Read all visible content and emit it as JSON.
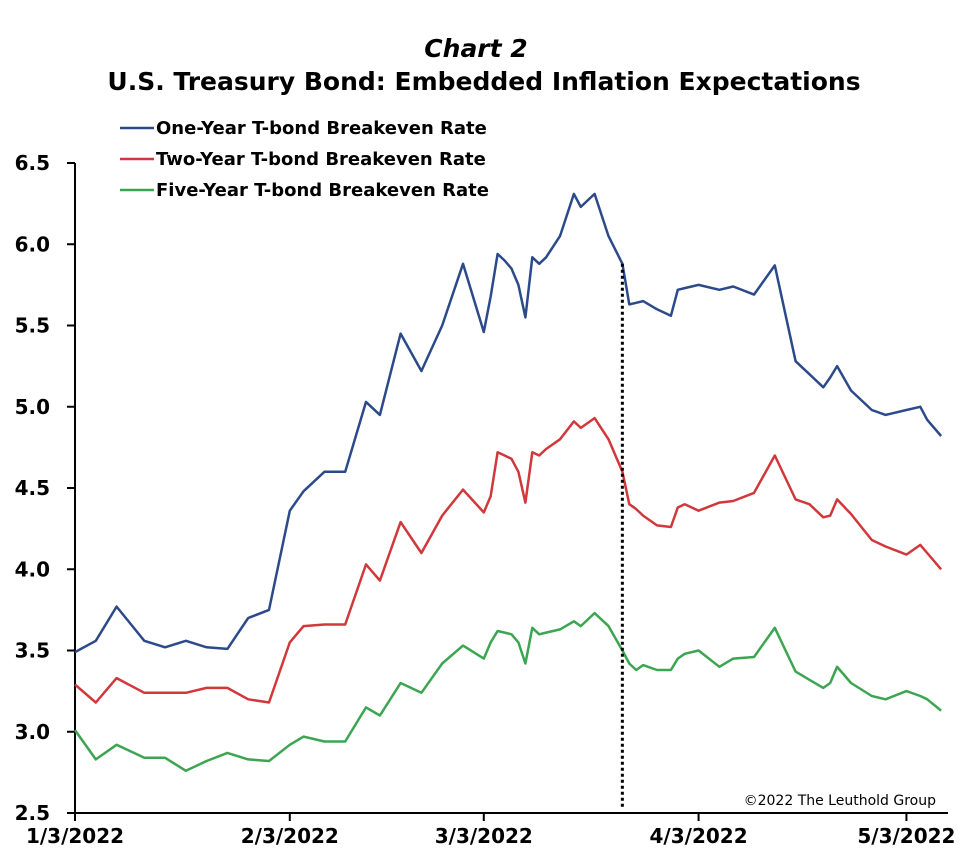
{
  "chart_data": {
    "type": "line",
    "title": "Chart 2",
    "subtitle": "U.S. Treasury Bond: Embedded Inflation Expectations",
    "credit": "©2022 The Leuthold Group",
    "xlabel": "",
    "ylabel": "",
    "ylim": [
      2.5,
      6.5
    ],
    "xlim": [
      "2022-01-03",
      "2022-05-09"
    ],
    "y_ticks": [
      "2.5",
      "3.0",
      "3.5",
      "4.0",
      "4.5",
      "5.0",
      "5.5",
      "6.0",
      "6.5"
    ],
    "x_ticks": [
      {
        "label": "1/3/2022",
        "date": "2022-01-03"
      },
      {
        "label": "2/3/2022",
        "date": "2022-02-03"
      },
      {
        "label": "3/3/2022",
        "date": "2022-03-03"
      },
      {
        "label": "4/3/2022",
        "date": "2022-04-03"
      },
      {
        "label": "5/3/2022",
        "date": "2022-05-03"
      }
    ],
    "legend_position": "top-left",
    "grid": false,
    "vertical_marker": {
      "date": "2022-03-23",
      "style": "dotted"
    },
    "x": [
      "2022-01-03",
      "2022-01-06",
      "2022-01-09",
      "2022-01-13",
      "2022-01-16",
      "2022-01-19",
      "2022-01-22",
      "2022-01-25",
      "2022-01-28",
      "2022-01-31",
      "2022-02-03",
      "2022-02-05",
      "2022-02-08",
      "2022-02-11",
      "2022-02-14",
      "2022-02-16",
      "2022-02-19",
      "2022-02-22",
      "2022-02-25",
      "2022-02-28",
      "2022-03-03",
      "2022-03-04",
      "2022-03-05",
      "2022-03-06",
      "2022-03-07",
      "2022-03-08",
      "2022-03-09",
      "2022-03-10",
      "2022-03-11",
      "2022-03-12",
      "2022-03-14",
      "2022-03-16",
      "2022-03-17",
      "2022-03-19",
      "2022-03-21",
      "2022-03-23",
      "2022-03-24",
      "2022-03-25",
      "2022-03-26",
      "2022-03-28",
      "2022-03-30",
      "2022-03-31",
      "2022-04-01",
      "2022-04-03",
      "2022-04-06",
      "2022-04-08",
      "2022-04-11",
      "2022-04-14",
      "2022-04-17",
      "2022-04-19",
      "2022-04-21",
      "2022-04-22",
      "2022-04-23",
      "2022-04-25",
      "2022-04-28",
      "2022-04-30",
      "2022-05-03",
      "2022-05-05",
      "2022-05-06",
      "2022-05-08"
    ],
    "series": [
      {
        "name": "One-Year T-bond Breakeven Rate",
        "color": "#2c4a8a",
        "values": [
          3.49,
          3.56,
          3.77,
          3.56,
          3.52,
          3.56,
          3.52,
          3.51,
          3.7,
          3.75,
          4.36,
          4.48,
          4.6,
          4.6,
          5.03,
          4.95,
          5.45,
          5.22,
          5.5,
          5.88,
          5.46,
          5.68,
          5.94,
          5.9,
          5.85,
          5.75,
          5.55,
          5.92,
          5.88,
          5.92,
          6.05,
          6.31,
          6.23,
          6.31,
          6.05,
          5.88,
          5.63,
          5.64,
          5.65,
          5.6,
          5.56,
          5.72,
          5.73,
          5.75,
          5.72,
          5.74,
          5.69,
          5.87,
          5.28,
          5.2,
          5.12,
          5.18,
          5.25,
          5.1,
          4.98,
          4.95,
          4.98,
          5.0,
          4.92,
          4.82
        ]
      },
      {
        "name": "Two-Year T-bond Breakeven Rate",
        "color": "#d0383b",
        "values": [
          3.29,
          3.18,
          3.33,
          3.24,
          3.24,
          3.24,
          3.27,
          3.27,
          3.2,
          3.18,
          3.55,
          3.65,
          3.66,
          3.66,
          4.03,
          3.93,
          4.29,
          4.1,
          4.33,
          4.49,
          4.35,
          4.45,
          4.72,
          4.7,
          4.68,
          4.6,
          4.41,
          4.72,
          4.7,
          4.74,
          4.8,
          4.91,
          4.87,
          4.93,
          4.8,
          4.6,
          4.4,
          4.37,
          4.33,
          4.27,
          4.26,
          4.38,
          4.4,
          4.36,
          4.41,
          4.42,
          4.47,
          4.7,
          4.43,
          4.4,
          4.32,
          4.33,
          4.43,
          4.34,
          4.18,
          4.14,
          4.09,
          4.15,
          4.1,
          4.0
        ]
      },
      {
        "name": "Five-Year T-bond Breakeven Rate",
        "color": "#3ca551",
        "values": [
          3.01,
          2.83,
          2.92,
          2.84,
          2.84,
          2.76,
          2.82,
          2.87,
          2.83,
          2.82,
          2.92,
          2.97,
          2.94,
          2.94,
          3.15,
          3.1,
          3.3,
          3.24,
          3.42,
          3.53,
          3.45,
          3.55,
          3.62,
          3.61,
          3.6,
          3.55,
          3.42,
          3.64,
          3.6,
          3.61,
          3.63,
          3.68,
          3.65,
          3.73,
          3.65,
          3.5,
          3.42,
          3.38,
          3.41,
          3.38,
          3.38,
          3.45,
          3.48,
          3.5,
          3.4,
          3.45,
          3.46,
          3.64,
          3.37,
          3.32,
          3.27,
          3.3,
          3.4,
          3.3,
          3.22,
          3.2,
          3.25,
          3.22,
          3.2,
          3.13
        ]
      }
    ]
  }
}
